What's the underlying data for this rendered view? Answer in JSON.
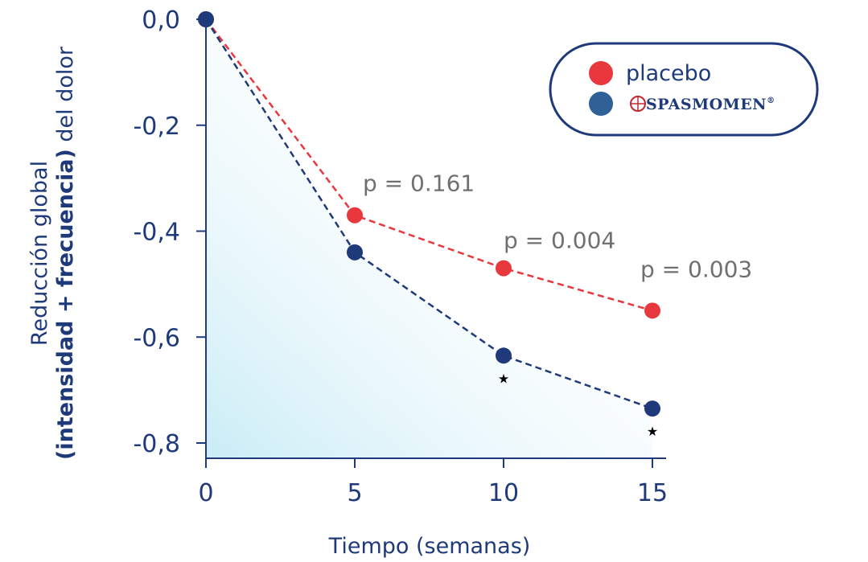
{
  "chart_data": {
    "type": "line",
    "x": [
      0,
      5,
      10,
      15
    ],
    "series": [
      {
        "name": "placebo",
        "color": "#e8383d",
        "values": [
          0.0,
          -0.37,
          -0.47,
          -0.55
        ]
      },
      {
        "name": "SPASMOMEN",
        "color": "#1f3a7a",
        "values": [
          0.0,
          -0.44,
          -0.635,
          -0.735
        ]
      }
    ],
    "xlabel": "Tiempo (semanas)",
    "ylabel_lines": [
      "Reducción global",
      "(intensidad + frecuencia)",
      " del dolor"
    ],
    "x_ticks": [
      "0",
      "5",
      "10",
      "15"
    ],
    "y_ticks": [
      "0,0",
      "-0,2",
      "-0,4",
      "-0,6",
      "-0,8"
    ],
    "y_tick_values": [
      0.0,
      -0.2,
      -0.4,
      -0.6,
      -0.8
    ],
    "xlim": [
      0,
      15
    ],
    "ylim": [
      -0.83,
      0.0
    ],
    "annotations": [
      {
        "text": "p = 0.161",
        "x": 5,
        "y": -0.37
      },
      {
        "text": "p = 0.004",
        "x": 10,
        "y": -0.47
      },
      {
        "text": "p = 0.003",
        "x": 15,
        "y": -0.55
      }
    ],
    "significance_marks": [
      {
        "x": 10,
        "y": -0.635,
        "symbol": "★"
      },
      {
        "x": 15,
        "y": -0.735,
        "symbol": "★"
      }
    ],
    "legend": {
      "placement": "top-right",
      "items": [
        {
          "label": "placebo",
          "color": "#e8383d"
        },
        {
          "label": "SPASMOMEN",
          "color": "#2f6096",
          "superscript": "®"
        }
      ]
    },
    "grid": false,
    "fill_gradient": [
      "#c9ecf6",
      "#ffffff"
    ]
  }
}
